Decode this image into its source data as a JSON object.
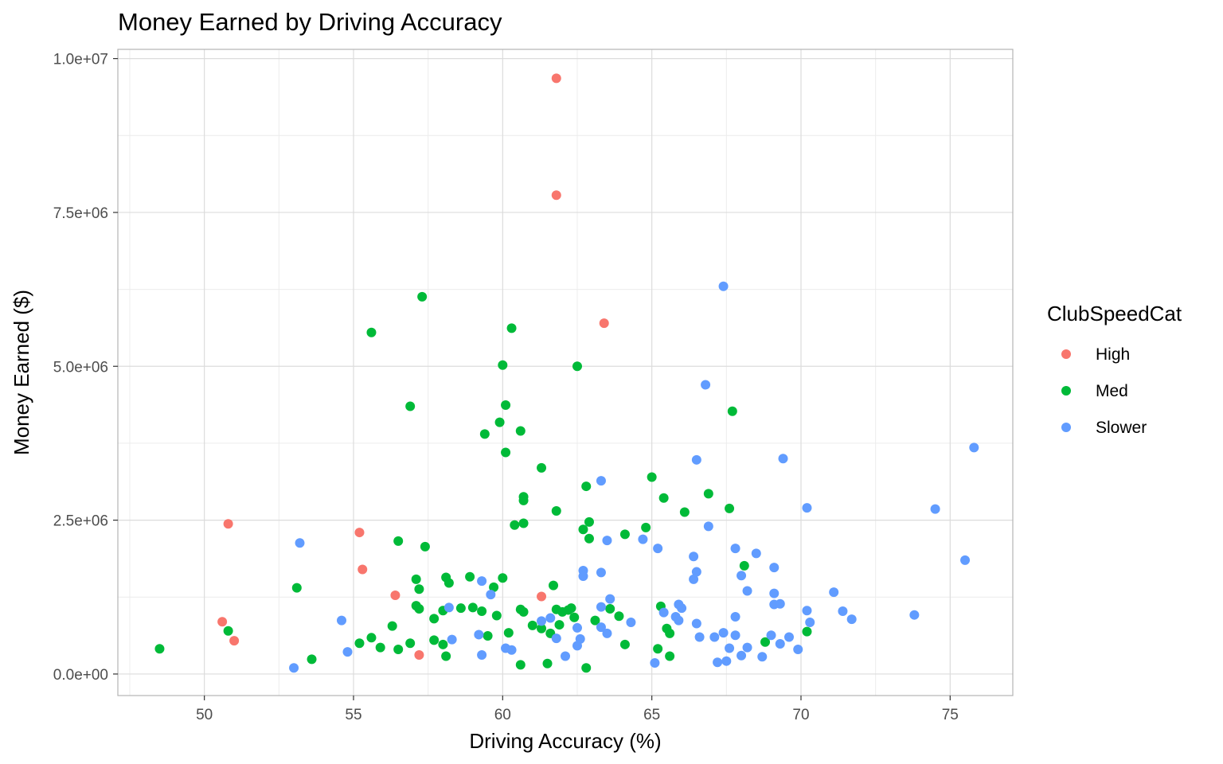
{
  "chart_data": {
    "type": "scatter",
    "title": "Money Earned by Driving Accuracy",
    "xlabel": "Driving Accuracy (%)",
    "ylabel": "Money Earned ($)",
    "xlim": [
      47.1,
      77.1
    ],
    "ylim": [
      -350000,
      10150000
    ],
    "x_ticks": [
      50,
      55,
      60,
      65,
      70,
      75
    ],
    "x_tick_labels": [
      "50",
      "55",
      "60",
      "65",
      "70",
      "75"
    ],
    "y_ticks": [
      0,
      2500000,
      5000000,
      7500000,
      10000000
    ],
    "y_tick_labels": [
      "0.0e+00",
      "2.5e+06",
      "5.0e+06",
      "7.5e+06",
      "1.0e+07"
    ],
    "grid": true,
    "legend": {
      "title": "ClubSpeedCat",
      "position": "right"
    },
    "series": [
      {
        "name": "High",
        "color": "#F8766D",
        "points": [
          [
            61.8,
            9680000
          ],
          [
            61.8,
            7780000
          ],
          [
            63.4,
            5700000
          ],
          [
            50.8,
            2440000
          ],
          [
            55.2,
            2300000
          ],
          [
            55.3,
            1700000
          ],
          [
            56.4,
            1280000
          ],
          [
            61.3,
            1260000
          ],
          [
            50.6,
            850000
          ],
          [
            51.0,
            540000
          ],
          [
            57.2,
            310000
          ]
        ]
      },
      {
        "name": "Med",
        "color": "#00BA38",
        "points": [
          [
            57.3,
            6130000
          ],
          [
            55.6,
            5550000
          ],
          [
            60.3,
            5620000
          ],
          [
            60.0,
            5020000
          ],
          [
            62.5,
            5000000
          ],
          [
            56.9,
            4350000
          ],
          [
            60.1,
            4370000
          ],
          [
            59.9,
            4090000
          ],
          [
            60.6,
            3950000
          ],
          [
            59.4,
            3900000
          ],
          [
            67.7,
            4270000
          ],
          [
            60.1,
            3600000
          ],
          [
            61.3,
            3350000
          ],
          [
            65.0,
            3200000
          ],
          [
            62.8,
            3050000
          ],
          [
            60.7,
            2880000
          ],
          [
            60.7,
            2820000
          ],
          [
            65.4,
            2860000
          ],
          [
            66.9,
            2930000
          ],
          [
            61.8,
            2650000
          ],
          [
            67.6,
            2690000
          ],
          [
            66.1,
            2630000
          ],
          [
            62.9,
            2470000
          ],
          [
            60.4,
            2420000
          ],
          [
            60.7,
            2450000
          ],
          [
            62.7,
            2350000
          ],
          [
            64.8,
            2380000
          ],
          [
            64.1,
            2270000
          ],
          [
            62.9,
            2200000
          ],
          [
            56.5,
            2160000
          ],
          [
            57.4,
            2070000
          ],
          [
            68.1,
            1760000
          ],
          [
            57.1,
            1540000
          ],
          [
            58.1,
            1570000
          ],
          [
            58.9,
            1580000
          ],
          [
            60.0,
            1560000
          ],
          [
            53.1,
            1400000
          ],
          [
            57.2,
            1380000
          ],
          [
            58.2,
            1480000
          ],
          [
            59.7,
            1410000
          ],
          [
            61.7,
            1440000
          ],
          [
            57.1,
            1110000
          ],
          [
            57.2,
            1060000
          ],
          [
            57.7,
            900000
          ],
          [
            58.0,
            1030000
          ],
          [
            58.6,
            1070000
          ],
          [
            59.0,
            1080000
          ],
          [
            59.3,
            1020000
          ],
          [
            59.8,
            950000
          ],
          [
            60.6,
            1050000
          ],
          [
            60.7,
            1010000
          ],
          [
            61.8,
            1050000
          ],
          [
            62.0,
            1010000
          ],
          [
            62.2,
            1040000
          ],
          [
            62.3,
            1070000
          ],
          [
            62.4,
            920000
          ],
          [
            63.1,
            870000
          ],
          [
            63.6,
            1060000
          ],
          [
            63.9,
            940000
          ],
          [
            65.3,
            1100000
          ],
          [
            56.3,
            780000
          ],
          [
            61.0,
            790000
          ],
          [
            61.3,
            740000
          ],
          [
            61.6,
            660000
          ],
          [
            61.9,
            800000
          ],
          [
            65.5,
            740000
          ],
          [
            65.6,
            660000
          ],
          [
            70.2,
            690000
          ],
          [
            50.8,
            700000
          ],
          [
            55.6,
            590000
          ],
          [
            57.7,
            550000
          ],
          [
            58.0,
            480000
          ],
          [
            59.5,
            620000
          ],
          [
            60.2,
            670000
          ],
          [
            55.2,
            500000
          ],
          [
            55.9,
            430000
          ],
          [
            56.5,
            400000
          ],
          [
            56.9,
            500000
          ],
          [
            48.5,
            410000
          ],
          [
            53.6,
            240000
          ],
          [
            58.1,
            290000
          ],
          [
            60.6,
            150000
          ],
          [
            61.5,
            170000
          ],
          [
            62.8,
            100000
          ],
          [
            64.1,
            480000
          ],
          [
            65.2,
            410000
          ],
          [
            65.6,
            290000
          ],
          [
            68.8,
            520000
          ]
        ]
      },
      {
        "name": "Slower",
        "color": "#619CFF",
        "points": [
          [
            67.4,
            6300000
          ],
          [
            66.8,
            4700000
          ],
          [
            75.8,
            3680000
          ],
          [
            69.4,
            3500000
          ],
          [
            66.5,
            3480000
          ],
          [
            63.3,
            3140000
          ],
          [
            70.2,
            2700000
          ],
          [
            74.5,
            2680000
          ],
          [
            66.9,
            2400000
          ],
          [
            64.7,
            2190000
          ],
          [
            63.5,
            2170000
          ],
          [
            53.2,
            2130000
          ],
          [
            65.2,
            2040000
          ],
          [
            67.8,
            2040000
          ],
          [
            68.5,
            1960000
          ],
          [
            66.4,
            1910000
          ],
          [
            75.5,
            1850000
          ],
          [
            69.1,
            1730000
          ],
          [
            62.7,
            1680000
          ],
          [
            63.3,
            1650000
          ],
          [
            66.5,
            1660000
          ],
          [
            62.7,
            1590000
          ],
          [
            66.4,
            1540000
          ],
          [
            68.0,
            1600000
          ],
          [
            59.3,
            1510000
          ],
          [
            59.6,
            1290000
          ],
          [
            68.2,
            1350000
          ],
          [
            69.1,
            1310000
          ],
          [
            71.1,
            1330000
          ],
          [
            63.6,
            1220000
          ],
          [
            65.9,
            1130000
          ],
          [
            66.0,
            1070000
          ],
          [
            69.1,
            1130000
          ],
          [
            69.3,
            1140000
          ],
          [
            70.2,
            1030000
          ],
          [
            71.4,
            1020000
          ],
          [
            58.2,
            1080000
          ],
          [
            63.3,
            1090000
          ],
          [
            65.4,
            1000000
          ],
          [
            65.8,
            930000
          ],
          [
            65.9,
            870000
          ],
          [
            67.8,
            930000
          ],
          [
            71.7,
            890000
          ],
          [
            73.8,
            960000
          ],
          [
            54.6,
            870000
          ],
          [
            61.3,
            860000
          ],
          [
            61.6,
            910000
          ],
          [
            62.5,
            750000
          ],
          [
            63.3,
            760000
          ],
          [
            64.3,
            840000
          ],
          [
            66.5,
            820000
          ],
          [
            70.3,
            840000
          ],
          [
            59.2,
            640000
          ],
          [
            61.8,
            580000
          ],
          [
            62.6,
            570000
          ],
          [
            63.5,
            660000
          ],
          [
            66.6,
            600000
          ],
          [
            67.1,
            600000
          ],
          [
            67.4,
            670000
          ],
          [
            67.8,
            630000
          ],
          [
            69.0,
            630000
          ],
          [
            69.6,
            600000
          ],
          [
            58.3,
            560000
          ],
          [
            54.8,
            360000
          ],
          [
            59.3,
            310000
          ],
          [
            60.1,
            420000
          ],
          [
            60.3,
            390000
          ],
          [
            62.1,
            290000
          ],
          [
            62.5,
            460000
          ],
          [
            67.6,
            420000
          ],
          [
            68.0,
            300000
          ],
          [
            68.2,
            430000
          ],
          [
            68.7,
            280000
          ],
          [
            69.3,
            490000
          ],
          [
            69.9,
            400000
          ],
          [
            53.0,
            100000
          ],
          [
            65.1,
            180000
          ],
          [
            67.2,
            190000
          ],
          [
            67.5,
            210000
          ]
        ]
      }
    ]
  }
}
